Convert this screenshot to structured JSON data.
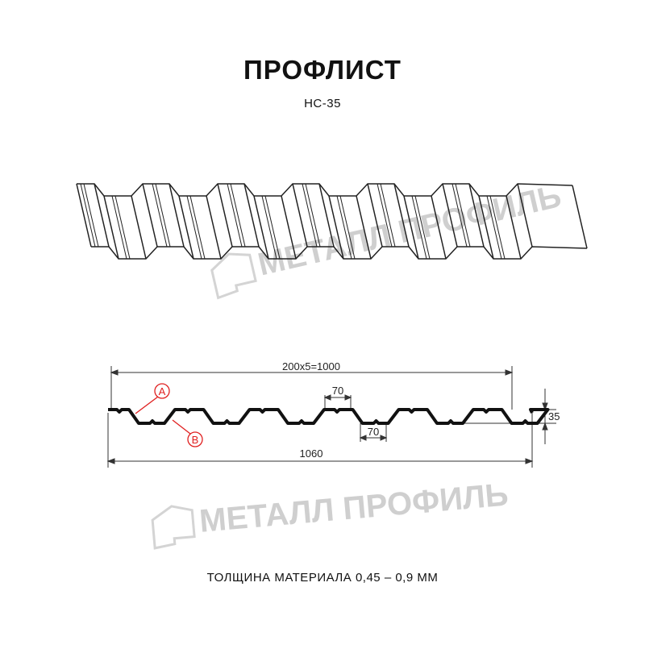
{
  "title": "ПРОФЛИСТ",
  "subtitle": "НС-35",
  "watermark": "МЕТАЛЛ ПРОФИЛЬ",
  "dimensions": {
    "pitch_total": "200x5=1000",
    "crest_width": "70",
    "trough_width": "70",
    "height": "35",
    "total_width": "1060"
  },
  "callouts": {
    "a": "A",
    "b": "B"
  },
  "footer": "ТОЛЩИНА МАТЕРИАЛА 0,45 – 0,9 ММ",
  "colors": {
    "profile": "#111111",
    "callout": "#e02020",
    "watermark": "#cfcfcf"
  }
}
